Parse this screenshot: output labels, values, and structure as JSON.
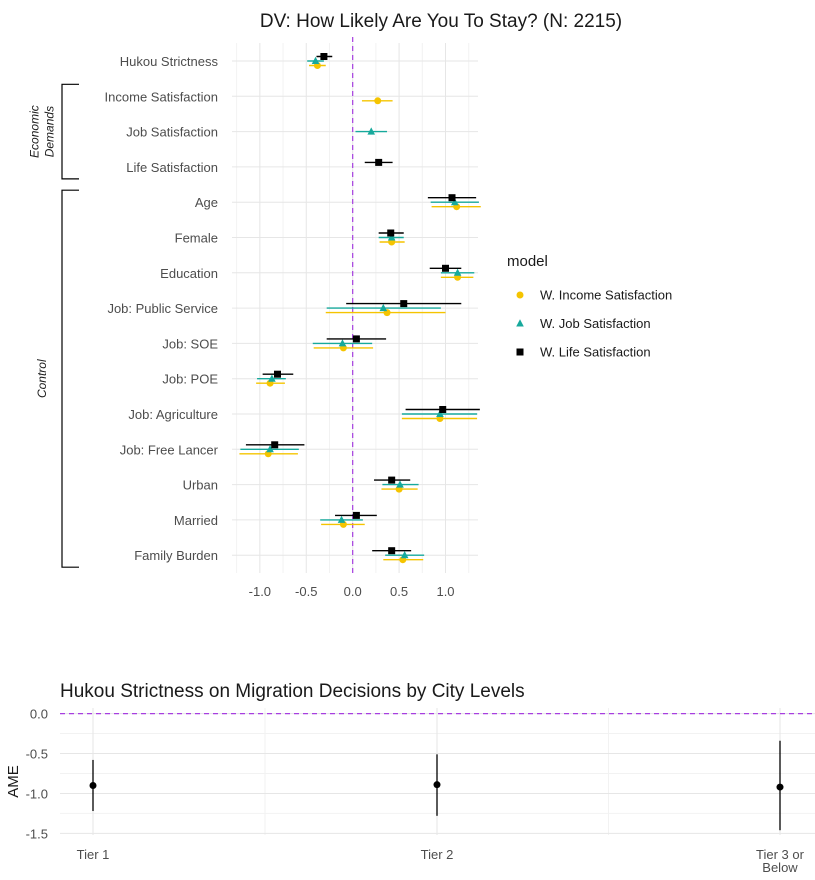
{
  "chart_data": [
    {
      "type": "scatter",
      "subtype": "coefficient-plot",
      "title": "DV: How Likely Are You To Stay? (N: 2215)",
      "xlim": [
        -1.3,
        1.35
      ],
      "x_ticks": [
        -1.0,
        -0.5,
        0.0,
        0.5,
        1.0
      ],
      "x_tick_labels": [
        "-1.0",
        "-0.5",
        "0.0",
        "0.5",
        "1.0"
      ],
      "reference_line": {
        "x": 0,
        "style": "dashed",
        "color": "#a73ee0"
      },
      "categories": [
        "Hukou Strictness",
        "Income Satisfaction",
        "Job Satisfaction",
        "Life Satisfaction",
        "Age",
        "Female",
        "Education",
        "Job: Public Service",
        "Job: SOE",
        "Job: POE",
        "Job: Agriculture",
        "Job: Free Lancer",
        "Urban",
        "Married",
        "Family Burden"
      ],
      "groups": [
        {
          "label": "Economic Demands",
          "lines": [
            "Economic",
            "Demands"
          ],
          "from": "Income Satisfaction",
          "to": "Life Satisfaction"
        },
        {
          "label": "Control",
          "lines": [
            "Control"
          ],
          "from": "Age",
          "to": "Family Burden"
        }
      ],
      "legend": {
        "title": "model",
        "position": "right"
      },
      "grid": true,
      "series": [
        {
          "name": "W. Income Satisfaction",
          "color": "#f5c400",
          "shape": "circle",
          "points": [
            {
              "term": "Hukou Strictness",
              "estimate": -0.38,
              "low": -0.47,
              "high": -0.29
            },
            {
              "term": "Income Satisfaction",
              "estimate": 0.27,
              "low": 0.1,
              "high": 0.43
            },
            {
              "term": "Age",
              "estimate": 1.12,
              "low": 0.85,
              "high": 1.38
            },
            {
              "term": "Female",
              "estimate": 0.42,
              "low": 0.29,
              "high": 0.56
            },
            {
              "term": "Education",
              "estimate": 1.13,
              "low": 0.95,
              "high": 1.3
            },
            {
              "term": "Job: Public Service",
              "estimate": 0.37,
              "low": -0.29,
              "high": 1.0
            },
            {
              "term": "Job: SOE",
              "estimate": -0.1,
              "low": -0.42,
              "high": 0.22
            },
            {
              "term": "Job: POE",
              "estimate": -0.89,
              "low": -1.04,
              "high": -0.73
            },
            {
              "term": "Job: Agriculture",
              "estimate": 0.94,
              "low": 0.53,
              "high": 1.34
            },
            {
              "term": "Job: Free Lancer",
              "estimate": -0.91,
              "low": -1.22,
              "high": -0.59
            },
            {
              "term": "Urban",
              "estimate": 0.5,
              "low": 0.31,
              "high": 0.7
            },
            {
              "term": "Married",
              "estimate": -0.1,
              "low": -0.34,
              "high": 0.13
            },
            {
              "term": "Family Burden",
              "estimate": 0.54,
              "low": 0.33,
              "high": 0.76
            }
          ]
        },
        {
          "name": "W. Job Satisfaction",
          "color": "#17a99c",
          "shape": "triangle",
          "points": [
            {
              "term": "Hukou Strictness",
              "estimate": -0.4,
              "low": -0.49,
              "high": -0.31
            },
            {
              "term": "Job Satisfaction",
              "estimate": 0.2,
              "low": 0.03,
              "high": 0.37
            },
            {
              "term": "Age",
              "estimate": 1.1,
              "low": 0.84,
              "high": 1.36
            },
            {
              "term": "Female",
              "estimate": 0.42,
              "low": 0.28,
              "high": 0.55
            },
            {
              "term": "Education",
              "estimate": 1.13,
              "low": 0.95,
              "high": 1.31
            },
            {
              "term": "Job: Public Service",
              "estimate": 0.33,
              "low": -0.28,
              "high": 0.95
            },
            {
              "term": "Job: SOE",
              "estimate": -0.11,
              "low": -0.43,
              "high": 0.21
            },
            {
              "term": "Job: POE",
              "estimate": -0.87,
              "low": -1.03,
              "high": -0.72
            },
            {
              "term": "Job: Agriculture",
              "estimate": 0.94,
              "low": 0.53,
              "high": 1.34
            },
            {
              "term": "Job: Free Lancer",
              "estimate": -0.89,
              "low": -1.21,
              "high": -0.58
            },
            {
              "term": "Urban",
              "estimate": 0.51,
              "low": 0.32,
              "high": 0.71
            },
            {
              "term": "Married",
              "estimate": -0.12,
              "low": -0.35,
              "high": 0.11
            },
            {
              "term": "Family Burden",
              "estimate": 0.56,
              "low": 0.35,
              "high": 0.77
            }
          ]
        },
        {
          "name": "W. Life Satisfaction",
          "color": "#000000",
          "shape": "square",
          "points": [
            {
              "term": "Hukou Strictness",
              "estimate": -0.31,
              "low": -0.39,
              "high": -0.22
            },
            {
              "term": "Life Satisfaction",
              "estimate": 0.28,
              "low": 0.13,
              "high": 0.43
            },
            {
              "term": "Age",
              "estimate": 1.07,
              "low": 0.81,
              "high": 1.33
            },
            {
              "term": "Female",
              "estimate": 0.41,
              "low": 0.28,
              "high": 0.55
            },
            {
              "term": "Education",
              "estimate": 1.0,
              "low": 0.83,
              "high": 1.17
            },
            {
              "term": "Job: Public Service",
              "estimate": 0.55,
              "low": -0.07,
              "high": 1.17
            },
            {
              "term": "Job: SOE",
              "estimate": 0.04,
              "low": -0.28,
              "high": 0.36
            },
            {
              "term": "Job: POE",
              "estimate": -0.81,
              "low": -0.97,
              "high": -0.64
            },
            {
              "term": "Job: Agriculture",
              "estimate": 0.97,
              "low": 0.57,
              "high": 1.37
            },
            {
              "term": "Job: Free Lancer",
              "estimate": -0.84,
              "low": -1.15,
              "high": -0.52
            },
            {
              "term": "Urban",
              "estimate": 0.42,
              "low": 0.23,
              "high": 0.62
            },
            {
              "term": "Married",
              "estimate": 0.04,
              "low": -0.19,
              "high": 0.26
            },
            {
              "term": "Family Burden",
              "estimate": 0.42,
              "low": 0.21,
              "high": 0.63
            }
          ]
        }
      ]
    },
    {
      "type": "scatter",
      "subtype": "point-range",
      "title": "Hukou Strictness on Migration Decisions by City Levels",
      "xlabel": "",
      "ylabel": "AME",
      "ylim": [
        -1.52,
        0.07
      ],
      "y_ticks": [
        0.0,
        -0.5,
        -1.0,
        -1.5
      ],
      "y_tick_labels": [
        "0.0",
        "-0.5",
        "-1.0",
        "-1.5"
      ],
      "reference_line": {
        "y": 0,
        "style": "dashed",
        "color": "#a73ee0"
      },
      "grid": true,
      "categories": [
        {
          "label": "Tier 1",
          "lines": [
            "Tier 1"
          ]
        },
        {
          "label": "Tier 2",
          "lines": [
            "Tier 2"
          ]
        },
        {
          "label": "Tier 3 or Below",
          "lines": [
            "Tier 3 or",
            "Below"
          ]
        }
      ],
      "series": [
        {
          "color": "#000000",
          "estimates": [
            -0.9,
            -0.89,
            -0.92
          ],
          "low": [
            -1.22,
            -1.28,
            -1.46
          ],
          "high": [
            -0.58,
            -0.51,
            -0.34
          ]
        }
      ]
    }
  ]
}
